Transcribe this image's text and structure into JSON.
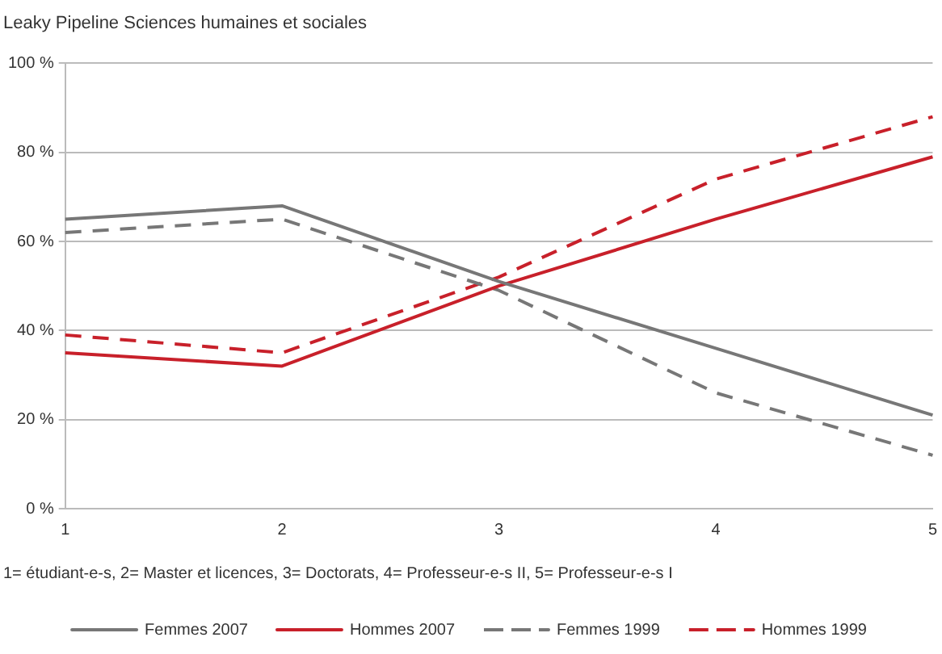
{
  "chart_data": {
    "type": "line",
    "title": "Leaky Pipeline Sciences humaines et sociales",
    "categories": [
      "1",
      "2",
      "3",
      "4",
      "5"
    ],
    "series": [
      {
        "name": "Femmes 2007",
        "color": "#777777",
        "line_style": "solid",
        "values": [
          65,
          68,
          51,
          36,
          21
        ]
      },
      {
        "name": "Hommes 2007",
        "color": "#c8202a",
        "line_style": "solid",
        "values": [
          35,
          32,
          50,
          65,
          79
        ]
      },
      {
        "name": "Femmes 1999",
        "color": "#777777",
        "line_style": "dashed",
        "values": [
          62,
          65,
          49,
          26,
          12
        ]
      },
      {
        "name": "Hommes 1999",
        "color": "#c8202a",
        "line_style": "dashed",
        "values": [
          39,
          35,
          52,
          74,
          88
        ]
      }
    ],
    "ylim": [
      0,
      100
    ],
    "yticks": [
      {
        "value": 0,
        "label": "0 %"
      },
      {
        "value": 20,
        "label": "20 %"
      },
      {
        "value": 40,
        "label": "40 %"
      },
      {
        "value": 60,
        "label": "60 %"
      },
      {
        "value": 80,
        "label": "80 %"
      },
      {
        "value": 100,
        "label": "100 %"
      }
    ],
    "grid": "y",
    "legend": "bottom",
    "marker": "none",
    "annotations": [
      "1= étudiant-e-s, 2= Master et licences, 3= Doctorats, 4= Professeur-e-s II, 5= Professeur-e-s I"
    ]
  }
}
